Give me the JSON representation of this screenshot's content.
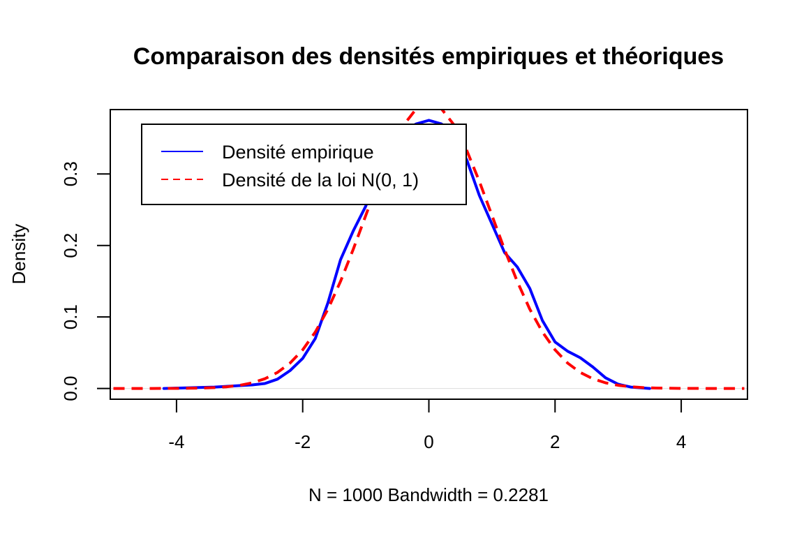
{
  "chart_data": {
    "type": "line",
    "title": "Comparaison des densités empiriques et théoriques",
    "xlabel": "N = 1000   Bandwidth = 0.2281",
    "ylabel": "Density",
    "xlim": [
      -5.05,
      5.05
    ],
    "ylim": [
      -0.015,
      0.39
    ],
    "x_ticks": [
      -4,
      -2,
      0,
      2,
      4
    ],
    "x_tick_labels": [
      "-4",
      "-2",
      "0",
      "2",
      "4"
    ],
    "y_ticks": [
      0.0,
      0.1,
      0.2,
      0.3
    ],
    "y_tick_labels": [
      "0.0",
      "0.1",
      "0.2",
      "0.3"
    ],
    "grid": false,
    "baseline_y": 0,
    "legend": {
      "placement": "top-left"
    },
    "series": [
      {
        "name": "Densité empirique",
        "color": "#0000ff",
        "dash": "solid",
        "x": [
          -4.2,
          -3.8,
          -3.4,
          -3.0,
          -2.8,
          -2.6,
          -2.4,
          -2.2,
          -2.0,
          -1.8,
          -1.6,
          -1.4,
          -1.2,
          -1.0,
          -0.8,
          -0.6,
          -0.4,
          -0.2,
          0.0,
          0.2,
          0.4,
          0.6,
          0.8,
          1.0,
          1.2,
          1.4,
          1.6,
          1.8,
          2.0,
          2.2,
          2.4,
          2.6,
          2.8,
          3.0,
          3.2,
          3.5
        ],
        "y": [
          0.0,
          0.001,
          0.002,
          0.004,
          0.005,
          0.007,
          0.013,
          0.025,
          0.042,
          0.07,
          0.12,
          0.18,
          0.22,
          0.255,
          0.3,
          0.34,
          0.36,
          0.37,
          0.375,
          0.37,
          0.35,
          0.32,
          0.27,
          0.23,
          0.19,
          0.17,
          0.14,
          0.095,
          0.065,
          0.052,
          0.043,
          0.03,
          0.015,
          0.006,
          0.002,
          0.0
        ]
      },
      {
        "name": "Densité de la loi N(0, 1)",
        "color": "#ff0000",
        "dash": "dashed",
        "x": [
          -5.0,
          -4.8,
          -4.6,
          -4.4,
          -4.2,
          -4.0,
          -3.8,
          -3.6,
          -3.4,
          -3.2,
          -3.0,
          -2.8,
          -2.6,
          -2.4,
          -2.2,
          -2.0,
          -1.8,
          -1.6,
          -1.4,
          -1.2,
          -1.0,
          -0.8,
          -0.6,
          -0.4,
          -0.2,
          0.0,
          0.2,
          0.4,
          0.6,
          0.8,
          1.0,
          1.2,
          1.4,
          1.6,
          1.8,
          2.0,
          2.2,
          2.4,
          2.6,
          2.8,
          3.0,
          3.2,
          3.4,
          3.6,
          3.8,
          4.0,
          4.2,
          4.4,
          4.6,
          4.8,
          5.0
        ],
        "y": [
          0.0,
          0.0,
          0.0,
          0.0,
          0.0001,
          0.0001,
          0.0003,
          0.0006,
          0.0012,
          0.0024,
          0.0044,
          0.0079,
          0.0136,
          0.0224,
          0.0355,
          0.054,
          0.079,
          0.1109,
          0.1497,
          0.1942,
          0.242,
          0.2897,
          0.3332,
          0.3683,
          0.391,
          0.3989,
          0.391,
          0.3683,
          0.3332,
          0.2897,
          0.242,
          0.1942,
          0.1497,
          0.1109,
          0.079,
          0.054,
          0.0355,
          0.0224,
          0.0136,
          0.0079,
          0.0044,
          0.0024,
          0.0012,
          0.0006,
          0.0003,
          0.0001,
          0.0001,
          0.0,
          0.0,
          0.0,
          0.0
        ]
      }
    ]
  }
}
